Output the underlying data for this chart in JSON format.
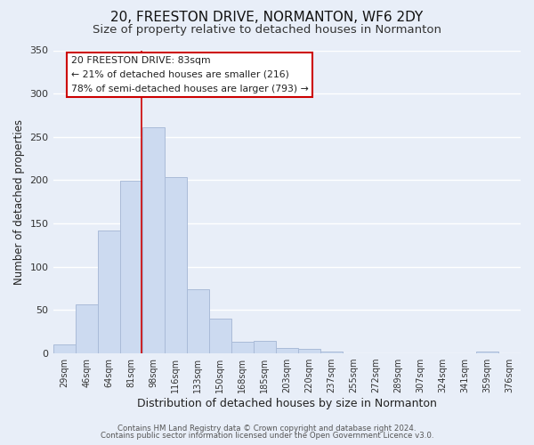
{
  "title": "20, FREESTON DRIVE, NORMANTON, WF6 2DY",
  "subtitle": "Size of property relative to detached houses in Normanton",
  "xlabel": "Distribution of detached houses by size in Normanton",
  "ylabel": "Number of detached properties",
  "bar_labels": [
    "29sqm",
    "46sqm",
    "64sqm",
    "81sqm",
    "98sqm",
    "116sqm",
    "133sqm",
    "150sqm",
    "168sqm",
    "185sqm",
    "203sqm",
    "220sqm",
    "237sqm",
    "255sqm",
    "272sqm",
    "289sqm",
    "307sqm",
    "324sqm",
    "341sqm",
    "359sqm",
    "376sqm"
  ],
  "bar_values": [
    10,
    57,
    142,
    199,
    261,
    204,
    74,
    40,
    13,
    14,
    6,
    5,
    2,
    0,
    0,
    0,
    0,
    0,
    0,
    2,
    0
  ],
  "bar_color": "#ccdaf0",
  "bar_edge_color": "#aabbd8",
  "ylim": [
    0,
    350
  ],
  "yticks": [
    0,
    50,
    100,
    150,
    200,
    250,
    300,
    350
  ],
  "annotation_title": "20 FREESTON DRIVE: 83sqm",
  "annotation_line1": "← 21% of detached houses are smaller (216)",
  "annotation_line2": "78% of semi-detached houses are larger (793) →",
  "annotation_box_facecolor": "#ffffff",
  "annotation_box_edgecolor": "#cc0000",
  "property_line_x": 3.47,
  "footer1": "Contains HM Land Registry data © Crown copyright and database right 2024.",
  "footer2": "Contains public sector information licensed under the Open Government Licence v3.0.",
  "background_color": "#e8eef8",
  "plot_background": "#e8eef8",
  "grid_color": "#ffffff",
  "title_fontsize": 11,
  "subtitle_fontsize": 9.5
}
